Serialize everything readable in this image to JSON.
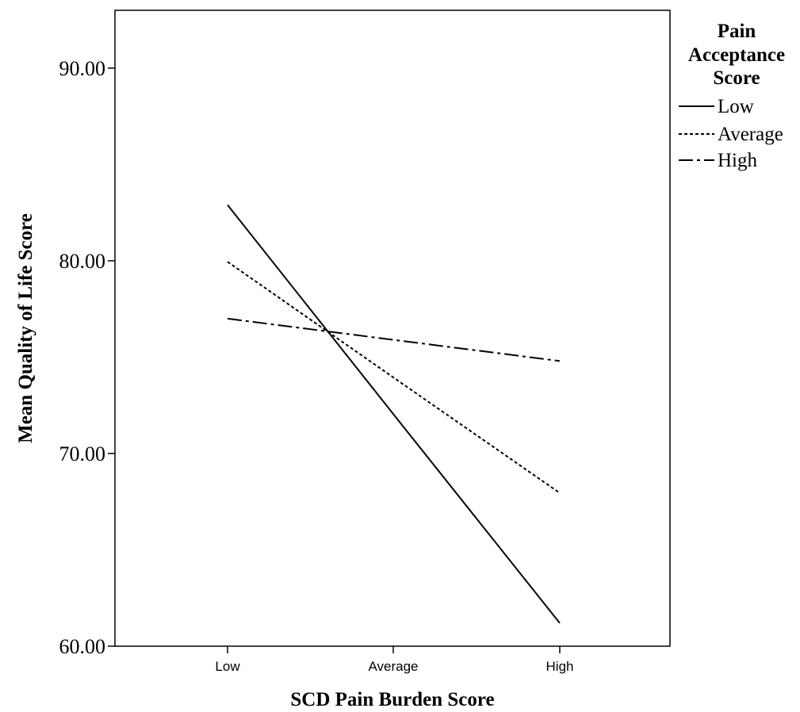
{
  "chart_data": {
    "type": "line",
    "title": "",
    "xlabel": "SCD Pain Burden Score",
    "ylabel": "Mean Quality of Life Score",
    "categories": [
      "Low",
      "Average",
      "High"
    ],
    "ylim": [
      60,
      93
    ],
    "yticks": [
      "60.00",
      "70.00",
      "80.00",
      "90.00"
    ],
    "ytick_values": [
      60,
      70,
      80,
      90
    ],
    "grid": false,
    "legend": {
      "title_lines": [
        "Pain",
        "Acceptance",
        "Score"
      ],
      "placement": "right-top"
    },
    "series": [
      {
        "name": "Low",
        "style": "solid",
        "color": "#000000",
        "values": [
          82.9,
          72.05,
          61.2
        ]
      },
      {
        "name": "Average",
        "style": "dotted",
        "color": "#000000",
        "values": [
          79.95,
          73.95,
          67.95
        ]
      },
      {
        "name": "High",
        "style": "dashdot",
        "color": "#000000",
        "values": [
          77.0,
          75.9,
          74.8
        ]
      }
    ]
  }
}
